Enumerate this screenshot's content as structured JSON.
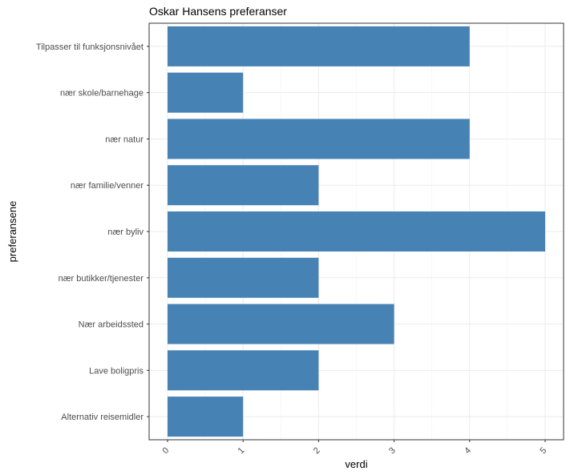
{
  "chart_data": {
    "type": "bar",
    "orientation": "horizontal",
    "title": "Oskar Hansens preferanser",
    "xlabel": "verdi",
    "ylabel": "preferansene",
    "categories": [
      "Tilpasser til funksjonsnivået",
      "nær skole/barnehage",
      "nær natur",
      "nær familie/venner",
      "nær byliv",
      "nær butikker/tjenester",
      "Nær arbeidssted",
      "Lave boligpris",
      "Alternativ reisemidler"
    ],
    "values": [
      4,
      1,
      4,
      2,
      5,
      2,
      3,
      2,
      1
    ],
    "xlim": [
      0,
      5
    ],
    "xticks": [
      "0",
      "1",
      "2",
      "3",
      "4",
      "5"
    ],
    "grid": true,
    "bar_color": "#4682B4",
    "panel_border_color": "#333333",
    "grid_color": "#ebebeb"
  }
}
